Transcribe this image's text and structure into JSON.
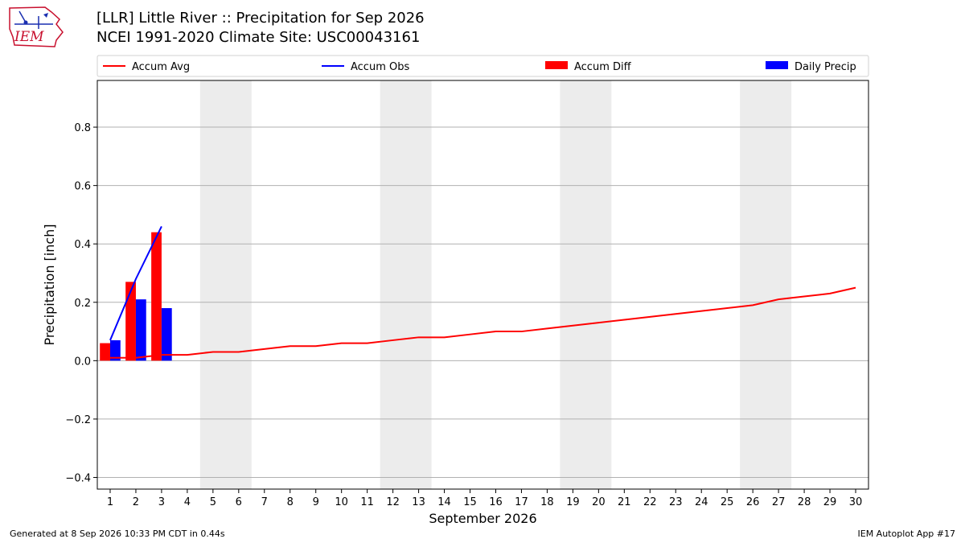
{
  "header": {
    "title_line1": "[LLR] Little River :: Precipitation for Sep 2026",
    "title_line2": "NCEI 1991-2020 Climate Site: USC00043161",
    "logo_text": "IEM"
  },
  "footer": {
    "generated": "Generated at 8 Sep 2026 10:33 PM CDT in 0.44s",
    "app": "IEM Autoplot App #17"
  },
  "colors": {
    "accum_avg": "#ff0000",
    "accum_obs": "#0000ff",
    "accum_diff": "#ff0000",
    "daily_precip": "#0000ff",
    "weekend_shade": "#ececec",
    "grid": "#b0b0b0",
    "logo": "#c8102e"
  },
  "chart_data": {
    "type": "bar",
    "xlabel": "September 2026",
    "ylabel": "Precipitation [inch]",
    "xlim": [
      0.5,
      30.5
    ],
    "ylim": [
      -0.44,
      0.96
    ],
    "yticks": [
      -0.4,
      -0.2,
      0.0,
      0.2,
      0.4,
      0.6,
      0.8
    ],
    "ytick_labels": [
      "−0.4",
      "−0.2",
      "0.0",
      "0.2",
      "0.4",
      "0.6",
      "0.8"
    ],
    "days": [
      1,
      2,
      3,
      4,
      5,
      6,
      7,
      8,
      9,
      10,
      11,
      12,
      13,
      14,
      15,
      16,
      17,
      18,
      19,
      20,
      21,
      22,
      23,
      24,
      25,
      26,
      27,
      28,
      29,
      30
    ],
    "weekend_days": [
      5,
      6,
      12,
      13,
      19,
      20,
      26,
      27
    ],
    "grid": "y",
    "legend_position": "top",
    "legend": [
      "Accum Avg",
      "Accum Obs",
      "Accum Diff",
      "Daily Precip"
    ],
    "series": [
      {
        "name": "Accum Avg",
        "kind": "line",
        "x": [
          1,
          2,
          3,
          4,
          5,
          6,
          7,
          8,
          9,
          10,
          11,
          12,
          13,
          14,
          15,
          16,
          17,
          18,
          19,
          20,
          21,
          22,
          23,
          24,
          25,
          26,
          27,
          28,
          29,
          30
        ],
        "values": [
          0.01,
          0.01,
          0.02,
          0.02,
          0.03,
          0.03,
          0.04,
          0.05,
          0.05,
          0.06,
          0.06,
          0.07,
          0.08,
          0.08,
          0.09,
          0.1,
          0.1,
          0.11,
          0.12,
          0.13,
          0.14,
          0.15,
          0.16,
          0.17,
          0.18,
          0.19,
          0.21,
          0.22,
          0.23,
          0.25
        ]
      },
      {
        "name": "Accum Obs",
        "kind": "line",
        "x": [
          1,
          2,
          3
        ],
        "values": [
          0.07,
          0.28,
          0.46
        ]
      },
      {
        "name": "Accum Diff",
        "kind": "bar",
        "x": [
          1,
          2,
          3
        ],
        "values": [
          0.06,
          0.27,
          0.44
        ]
      },
      {
        "name": "Daily Precip",
        "kind": "bar",
        "x": [
          1,
          2,
          3
        ],
        "values": [
          0.07,
          0.21,
          0.18
        ]
      }
    ]
  }
}
